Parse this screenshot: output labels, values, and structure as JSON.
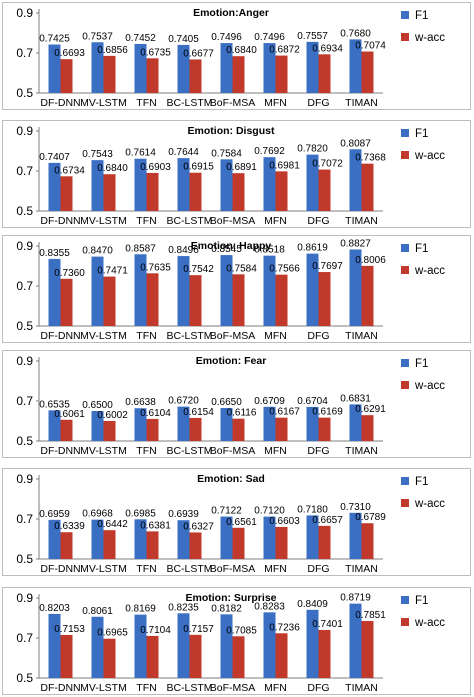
{
  "chart_data": [
    {
      "type": "bar",
      "title": "Emotion:Anger",
      "categories": [
        "DF-DNN",
        "MV-LSTM",
        "TFN",
        "BC-LSTM",
        "BoF-MSA",
        "MFN",
        "DFG",
        "TIMAN"
      ],
      "ylim": [
        0.5,
        0.9
      ],
      "yticks": [
        0.5,
        0.7,
        0.9
      ],
      "series": [
        {
          "name": "F1",
          "color": "#3a6fc4",
          "values": [
            0.7425,
            0.7537,
            0.7452,
            0.7405,
            0.7496,
            0.7496,
            0.7557,
            0.768
          ]
        },
        {
          "name": "w-acc",
          "color": "#c0392b",
          "values": [
            0.6693,
            0.6856,
            0.6735,
            0.6677,
            0.684,
            0.6872,
            0.6934,
            0.7074
          ]
        }
      ]
    },
    {
      "type": "bar",
      "title": "Emotion: Disgust",
      "categories": [
        "DF-DNN",
        "MV-LSTM",
        "TFN",
        "BC-LSTM",
        "BoF-MSA",
        "MFN",
        "DFG",
        "TIMAN"
      ],
      "ylim": [
        0.5,
        0.9
      ],
      "yticks": [
        0.5,
        0.7,
        0.9
      ],
      "series": [
        {
          "name": "F1",
          "color": "#3a6fc4",
          "values": [
            0.7407,
            0.7543,
            0.7614,
            0.7644,
            0.7584,
            0.7692,
            0.782,
            0.8087
          ]
        },
        {
          "name": "w-acc",
          "color": "#c0392b",
          "values": [
            0.6734,
            0.684,
            0.6903,
            0.6915,
            0.6891,
            0.6981,
            0.7072,
            0.7368
          ]
        }
      ]
    },
    {
      "type": "bar",
      "title": "Emotion: Happy",
      "categories": [
        "DF-DNN",
        "MV-LSTM",
        "TFN",
        "BC-LSTM",
        "BoF-MSA",
        "MFN",
        "DFG",
        "TIMAN"
      ],
      "ylim": [
        0.5,
        0.9
      ],
      "yticks": [
        0.5,
        0.7,
        0.9
      ],
      "series": [
        {
          "name": "F1",
          "color": "#3a6fc4",
          "values": [
            0.8355,
            0.847,
            0.8587,
            0.8496,
            0.8545,
            0.8518,
            0.8619,
            0.8827
          ]
        },
        {
          "name": "w-acc",
          "color": "#c0392b",
          "values": [
            0.736,
            0.7471,
            0.7635,
            0.7542,
            0.7584,
            0.7566,
            0.7697,
            0.8006
          ]
        }
      ]
    },
    {
      "type": "bar",
      "title": "Emotion: Fear",
      "categories": [
        "DF-DNN",
        "MV-LSTM",
        "TFN",
        "BC-LSTM",
        "BoF-MSA",
        "MFN",
        "DFG",
        "TIMAN"
      ],
      "ylim": [
        0.5,
        0.9
      ],
      "yticks": [
        0.5,
        0.7,
        0.9
      ],
      "series": [
        {
          "name": "F1",
          "color": "#3a6fc4",
          "values": [
            0.6535,
            0.65,
            0.6638,
            0.672,
            0.665,
            0.6709,
            0.6704,
            0.6831
          ]
        },
        {
          "name": "w-acc",
          "color": "#c0392b",
          "values": [
            0.6061,
            0.6002,
            0.6104,
            0.6154,
            0.6116,
            0.6167,
            0.6169,
            0.6291
          ]
        }
      ]
    },
    {
      "type": "bar",
      "title": "Emotion: Sad",
      "categories": [
        "DF-DNN",
        "MV-LSTM",
        "TFN",
        "BC-LSTM",
        "BoF-MSA",
        "MFN",
        "DFG",
        "TIMAN"
      ],
      "ylim": [
        0.5,
        0.9
      ],
      "yticks": [
        0.5,
        0.7,
        0.9
      ],
      "series": [
        {
          "name": "F1",
          "color": "#3a6fc4",
          "values": [
            0.6959,
            0.6968,
            0.6985,
            0.6939,
            0.7122,
            0.712,
            0.718,
            0.731
          ]
        },
        {
          "name": "w-acc",
          "color": "#c0392b",
          "values": [
            0.6339,
            0.6442,
            0.6381,
            0.6327,
            0.6561,
            0.6603,
            0.6657,
            0.6789
          ]
        }
      ]
    },
    {
      "type": "bar",
      "title": "Emotion: Surprise",
      "categories": [
        "DF-DNN",
        "MV-LSTM",
        "TFN",
        "BC-LSTM",
        "BoF-MSA",
        "MFN",
        "DFG",
        "TIMAN"
      ],
      "ylim": [
        0.5,
        0.9
      ],
      "yticks": [
        0.5,
        0.7,
        0.9
      ],
      "series": [
        {
          "name": "F1",
          "color": "#3a6fc4",
          "values": [
            0.8203,
            0.8061,
            0.8169,
            0.8235,
            0.8182,
            0.8283,
            0.8409,
            0.8719
          ]
        },
        {
          "name": "w-acc",
          "color": "#c0392b",
          "values": [
            0.7153,
            0.6965,
            0.7104,
            0.7157,
            0.7085,
            0.7236,
            0.7401,
            0.7851
          ]
        }
      ]
    }
  ]
}
